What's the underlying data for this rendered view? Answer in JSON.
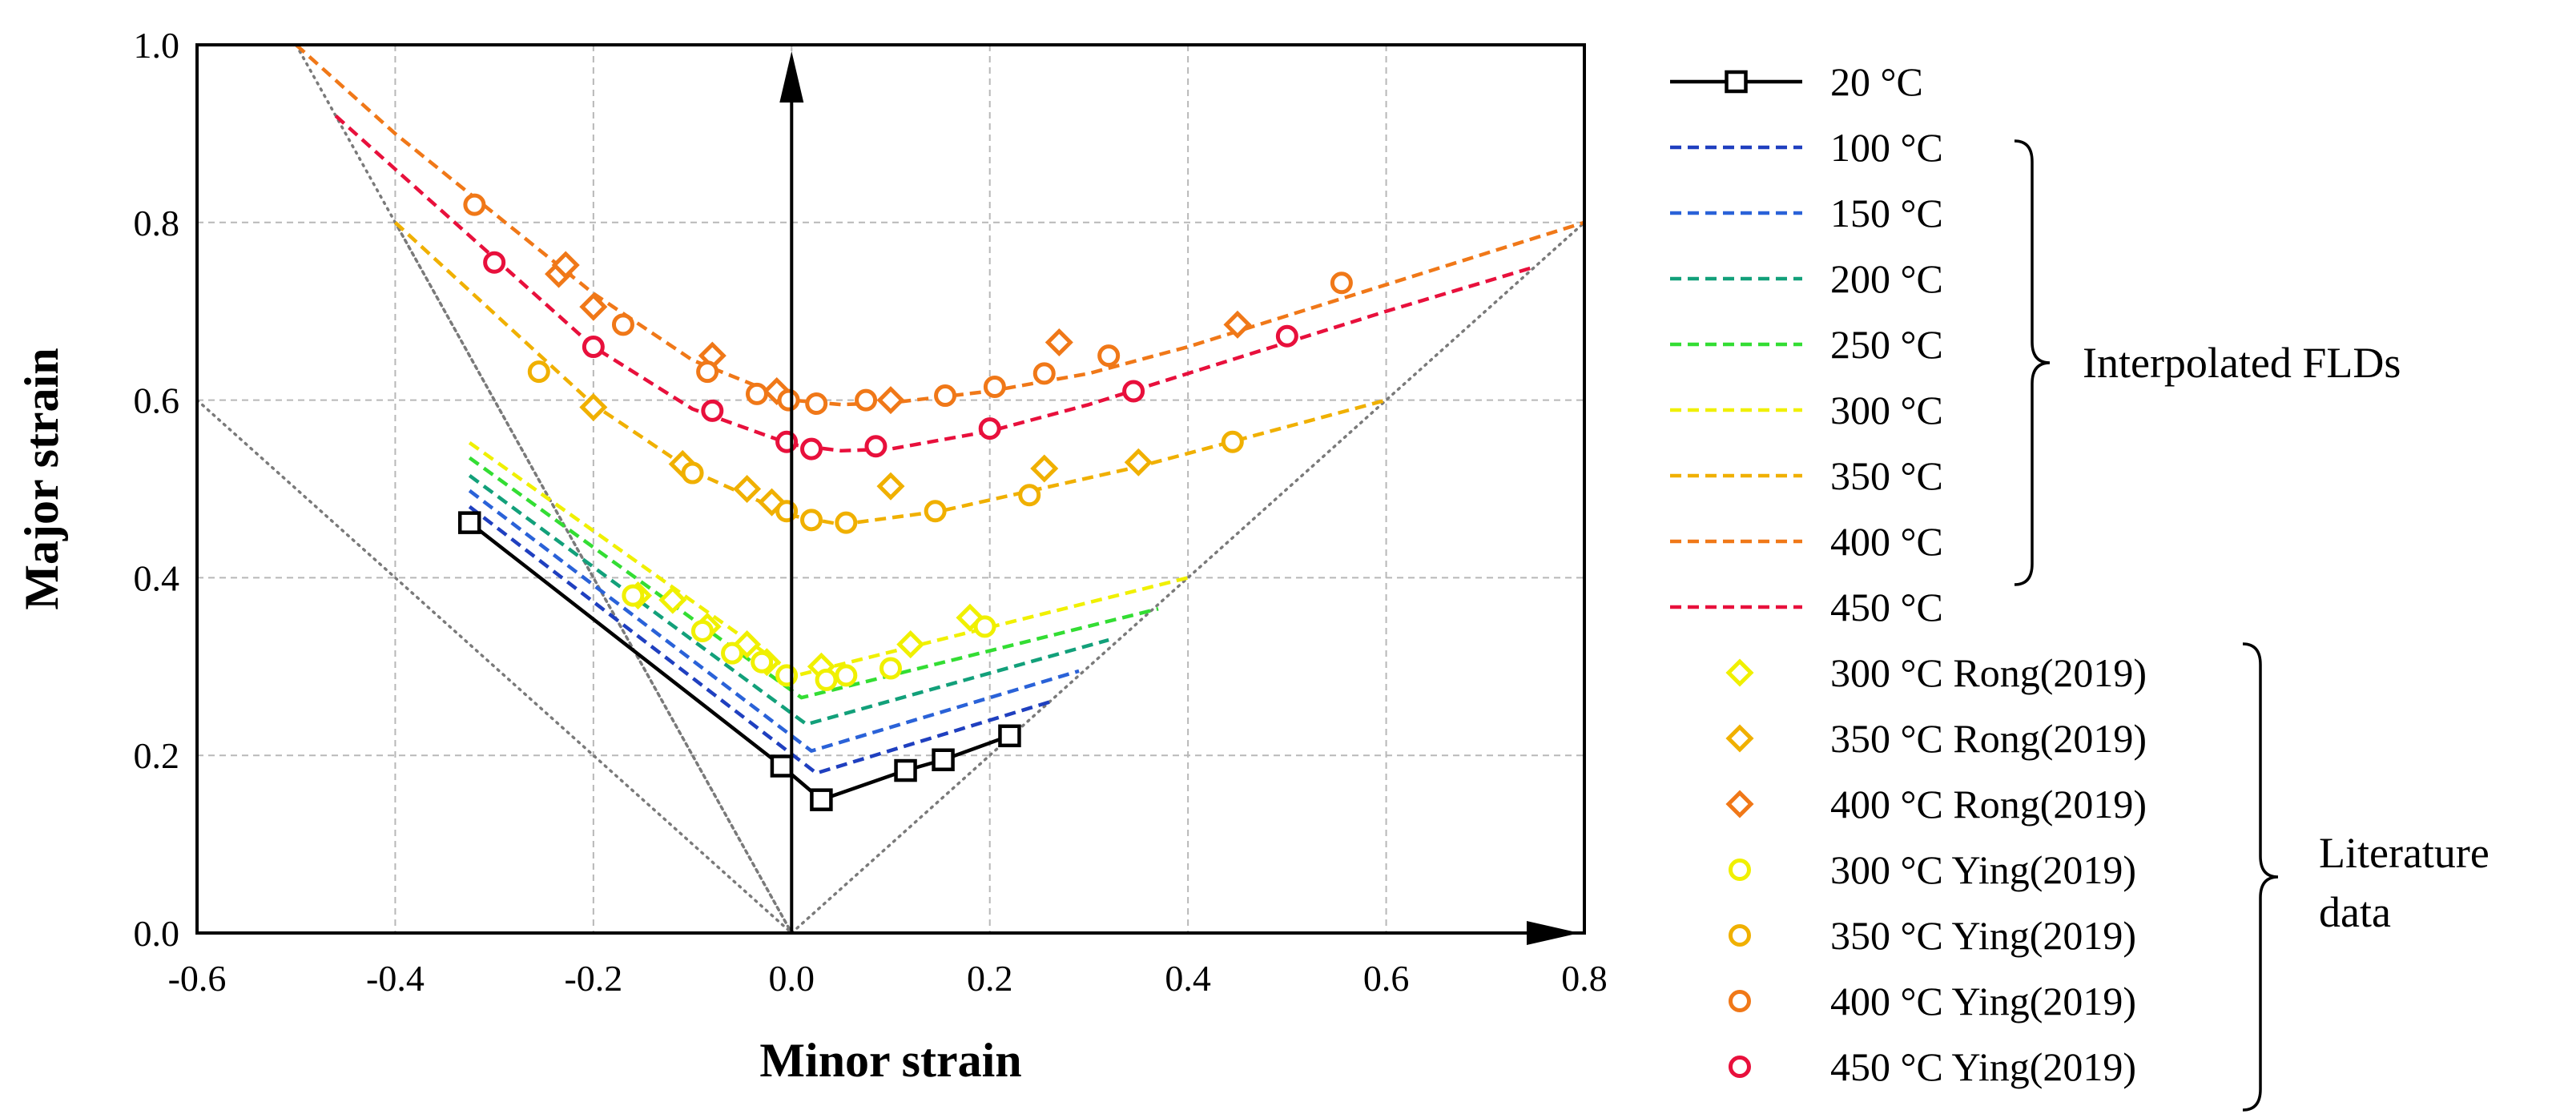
{
  "chart_data": {
    "type": "scatter",
    "title": "",
    "xlabel": "Minor strain",
    "ylabel": "Major strain",
    "xlim": [
      -0.6,
      0.8
    ],
    "ylim": [
      0.0,
      1.0
    ],
    "x_ticks": [
      "-0.6",
      "-0.4",
      "-0.2",
      "0.0",
      "0.2",
      "0.4",
      "0.6",
      "0.8"
    ],
    "y_ticks": [
      "0.0",
      "0.2",
      "0.4",
      "0.6",
      "0.8",
      "1.0"
    ],
    "x_tick_values": [
      -0.6,
      -0.4,
      -0.2,
      0.0,
      0.2,
      0.4,
      0.6,
      0.8
    ],
    "y_tick_values": [
      0.0,
      0.2,
      0.4,
      0.6,
      0.8,
      1.0
    ],
    "grid": true,
    "legend_position": "right",
    "reference_lines": [
      {
        "x": [
          -0.5,
          0.0
        ],
        "y": [
          1.0,
          0.0
        ]
      },
      {
        "x": [
          -0.4,
          0.0
        ],
        "y": [
          0.8,
          0.0
        ]
      },
      {
        "x": [
          -0.6,
          0.0
        ],
        "y": [
          0.6,
          0.0
        ]
      },
      {
        "x": [
          0.0,
          0.8
        ],
        "y": [
          0.0,
          0.8
        ]
      }
    ],
    "lines": [
      {
        "name": "20 °C",
        "style": "solid-square",
        "color": "#000000",
        "x": [
          -0.325,
          -0.01,
          0.03,
          0.115,
          0.153,
          0.22
        ],
        "y": [
          0.462,
          0.188,
          0.15,
          0.183,
          0.195,
          0.222
        ]
      },
      {
        "name": "100 °C",
        "style": "dashed",
        "color": "#1f3fbf",
        "x": [
          -0.325,
          0.025,
          0.26
        ],
        "y": [
          0.48,
          0.18,
          0.26
        ]
      },
      {
        "name": "150 °C",
        "style": "dashed",
        "color": "#2a62d8",
        "x": [
          -0.325,
          0.02,
          0.29
        ],
        "y": [
          0.498,
          0.205,
          0.295
        ]
      },
      {
        "name": "200 °C",
        "style": "dashed",
        "color": "#12a07a",
        "x": [
          -0.325,
          0.015,
          0.32
        ],
        "y": [
          0.515,
          0.235,
          0.33
        ]
      },
      {
        "name": "250 °C",
        "style": "dashed",
        "color": "#33dd33",
        "x": [
          -0.325,
          0.01,
          0.37
        ],
        "y": [
          0.535,
          0.265,
          0.365
        ]
      },
      {
        "name": "300 °C",
        "style": "dashed",
        "color": "#f0f000",
        "x": [
          -0.325,
          0.005,
          0.4
        ],
        "y": [
          0.552,
          0.29,
          0.4
        ]
      },
      {
        "name": "350 °C",
        "style": "dashed",
        "color": "#f0b000",
        "x": [
          -0.4,
          -0.2,
          -0.1,
          0.0,
          0.05,
          0.15,
          0.25,
          0.35,
          0.45,
          0.6
        ],
        "y": [
          0.8,
          0.595,
          0.52,
          0.47,
          0.46,
          0.475,
          0.5,
          0.525,
          0.555,
          0.6
        ]
      },
      {
        "name": "400 °C",
        "style": "dashed",
        "color": "#f07818",
        "x": [
          -0.5,
          -0.4,
          -0.3,
          -0.2,
          -0.1,
          0.0,
          0.05,
          0.1,
          0.2,
          0.3,
          0.4,
          0.5,
          0.6,
          0.7,
          0.8
        ],
        "y": [
          1.0,
          0.9,
          0.81,
          0.72,
          0.645,
          0.6,
          0.595,
          0.597,
          0.61,
          0.63,
          0.66,
          0.695,
          0.73,
          0.765,
          0.8
        ]
      },
      {
        "name": "450 °C",
        "style": "dashed",
        "color": "#e8103c",
        "x": [
          -0.46,
          -0.4,
          -0.3,
          -0.2,
          -0.1,
          0.0,
          0.05,
          0.1,
          0.2,
          0.3,
          0.4,
          0.5,
          0.6,
          0.75
        ],
        "y": [
          0.92,
          0.86,
          0.76,
          0.66,
          0.59,
          0.55,
          0.543,
          0.545,
          0.565,
          0.595,
          0.63,
          0.665,
          0.7,
          0.75
        ]
      }
    ],
    "scatter": [
      {
        "name": "300 °C Rong(2019)",
        "marker": "diamond",
        "color": "#f0f000",
        "x": [
          -0.155,
          -0.12,
          -0.085,
          -0.045,
          -0.025,
          0.03,
          0.12,
          0.18
        ],
        "y": [
          0.38,
          0.375,
          0.345,
          0.325,
          0.305,
          0.3,
          0.325,
          0.355
        ]
      },
      {
        "name": "350 °C Rong(2019)",
        "marker": "diamond",
        "color": "#f0b000",
        "x": [
          -0.2,
          -0.11,
          -0.045,
          -0.02,
          0.1,
          0.255,
          0.35
        ],
        "y": [
          0.592,
          0.528,
          0.5,
          0.485,
          0.503,
          0.523,
          0.53
        ]
      },
      {
        "name": "400 °C Rong(2019)",
        "marker": "diamond",
        "color": "#f07818",
        "x": [
          -0.235,
          -0.228,
          -0.2,
          -0.08,
          -0.015,
          0.1,
          0.27,
          0.45
        ],
        "y": [
          0.742,
          0.752,
          0.705,
          0.65,
          0.61,
          0.6,
          0.665,
          0.685
        ]
      },
      {
        "name": "300 °C Ying(2019)",
        "marker": "circle",
        "color": "#f0f000",
        "x": [
          -0.16,
          -0.09,
          -0.06,
          -0.03,
          -0.005,
          0.035,
          0.055,
          0.1,
          0.195
        ],
        "y": [
          0.38,
          0.34,
          0.315,
          0.305,
          0.29,
          0.285,
          0.29,
          0.298,
          0.345
        ]
      },
      {
        "name": "350 °C Ying(2019)",
        "marker": "circle",
        "color": "#f0b000",
        "x": [
          -0.255,
          -0.1,
          -0.005,
          0.02,
          0.055,
          0.145,
          0.24,
          0.445
        ],
        "y": [
          0.632,
          0.518,
          0.475,
          0.465,
          0.462,
          0.475,
          0.493,
          0.553
        ]
      },
      {
        "name": "400 °C Ying(2019)",
        "marker": "circle",
        "color": "#f07818",
        "x": [
          -0.32,
          -0.17,
          -0.085,
          -0.035,
          -0.003,
          0.025,
          0.075,
          0.155,
          0.205,
          0.255,
          0.32,
          0.555
        ],
        "y": [
          0.82,
          0.685,
          0.632,
          0.607,
          0.6,
          0.596,
          0.6,
          0.605,
          0.615,
          0.63,
          0.65,
          0.732
        ]
      },
      {
        "name": "450 °C Ying(2019)",
        "marker": "circle",
        "color": "#e8103c",
        "x": [
          -0.3,
          -0.2,
          -0.08,
          -0.005,
          0.02,
          0.085,
          0.2,
          0.345,
          0.5
        ],
        "y": [
          0.755,
          0.66,
          0.588,
          0.553,
          0.545,
          0.548,
          0.568,
          0.61,
          0.672
        ]
      }
    ],
    "legend_groups": [
      {
        "label": "Interpolated FLDs",
        "first": 1,
        "last": 8
      },
      {
        "label_lines": [
          "Literature",
          "data"
        ],
        "first": 9,
        "last": 15
      }
    ]
  }
}
